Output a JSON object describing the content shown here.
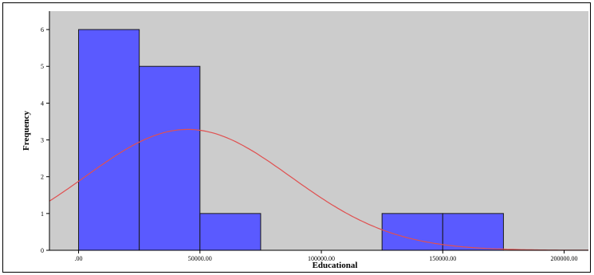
{
  "chart_data": {
    "type": "bar",
    "title": "",
    "xlabel": "Educational",
    "ylabel": "Frequency",
    "bin_edges": [
      0,
      25000,
      50000,
      75000,
      100000,
      125000,
      150000,
      175000
    ],
    "counts": [
      6,
      5,
      1,
      0,
      0,
      1,
      1
    ],
    "xlim": [
      -12000,
      210000
    ],
    "ylim": [
      0,
      6.5
    ],
    "x_ticks": [
      0,
      50000,
      100000,
      150000,
      200000
    ],
    "x_tick_labels": [
      ".00",
      "50000.00",
      "100000.00",
      "150000.00",
      "200000.00"
    ],
    "y_ticks": [
      0,
      1,
      2,
      3,
      4,
      5,
      6
    ],
    "y_tick_labels": [
      "0",
      "1",
      "2",
      "3",
      "4",
      "5",
      "6"
    ],
    "normal_curve": {
      "mean": 45000,
      "std": 42500,
      "n": 14,
      "bin_width": 25000
    },
    "grid": false,
    "colors": {
      "bar_fill": "#5a5aff",
      "bar_stroke": "#1a1a1a",
      "plot_background": "#cccccc",
      "curve": "#e05050"
    }
  }
}
